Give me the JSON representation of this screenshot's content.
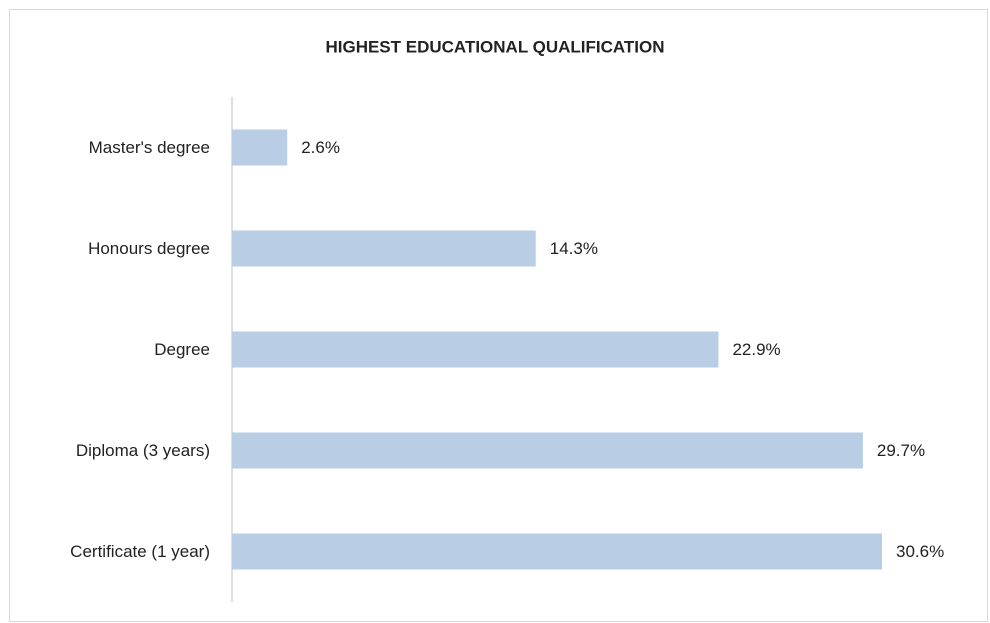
{
  "chart_data": {
    "type": "bar",
    "orientation": "horizontal",
    "title": "HIGHEST EDUCATIONAL QUALIFICATION",
    "categories": [
      "Master's degree",
      "Honours degree",
      "Degree",
      "Diploma (3 years)",
      "Certificate (1 year)"
    ],
    "values": [
      2.6,
      14.3,
      22.9,
      29.7,
      30.6
    ],
    "value_labels": [
      "2.6%",
      "14.3%",
      "22.9%",
      "29.7%",
      "30.6%"
    ],
    "color": "#b9cde5"
  }
}
